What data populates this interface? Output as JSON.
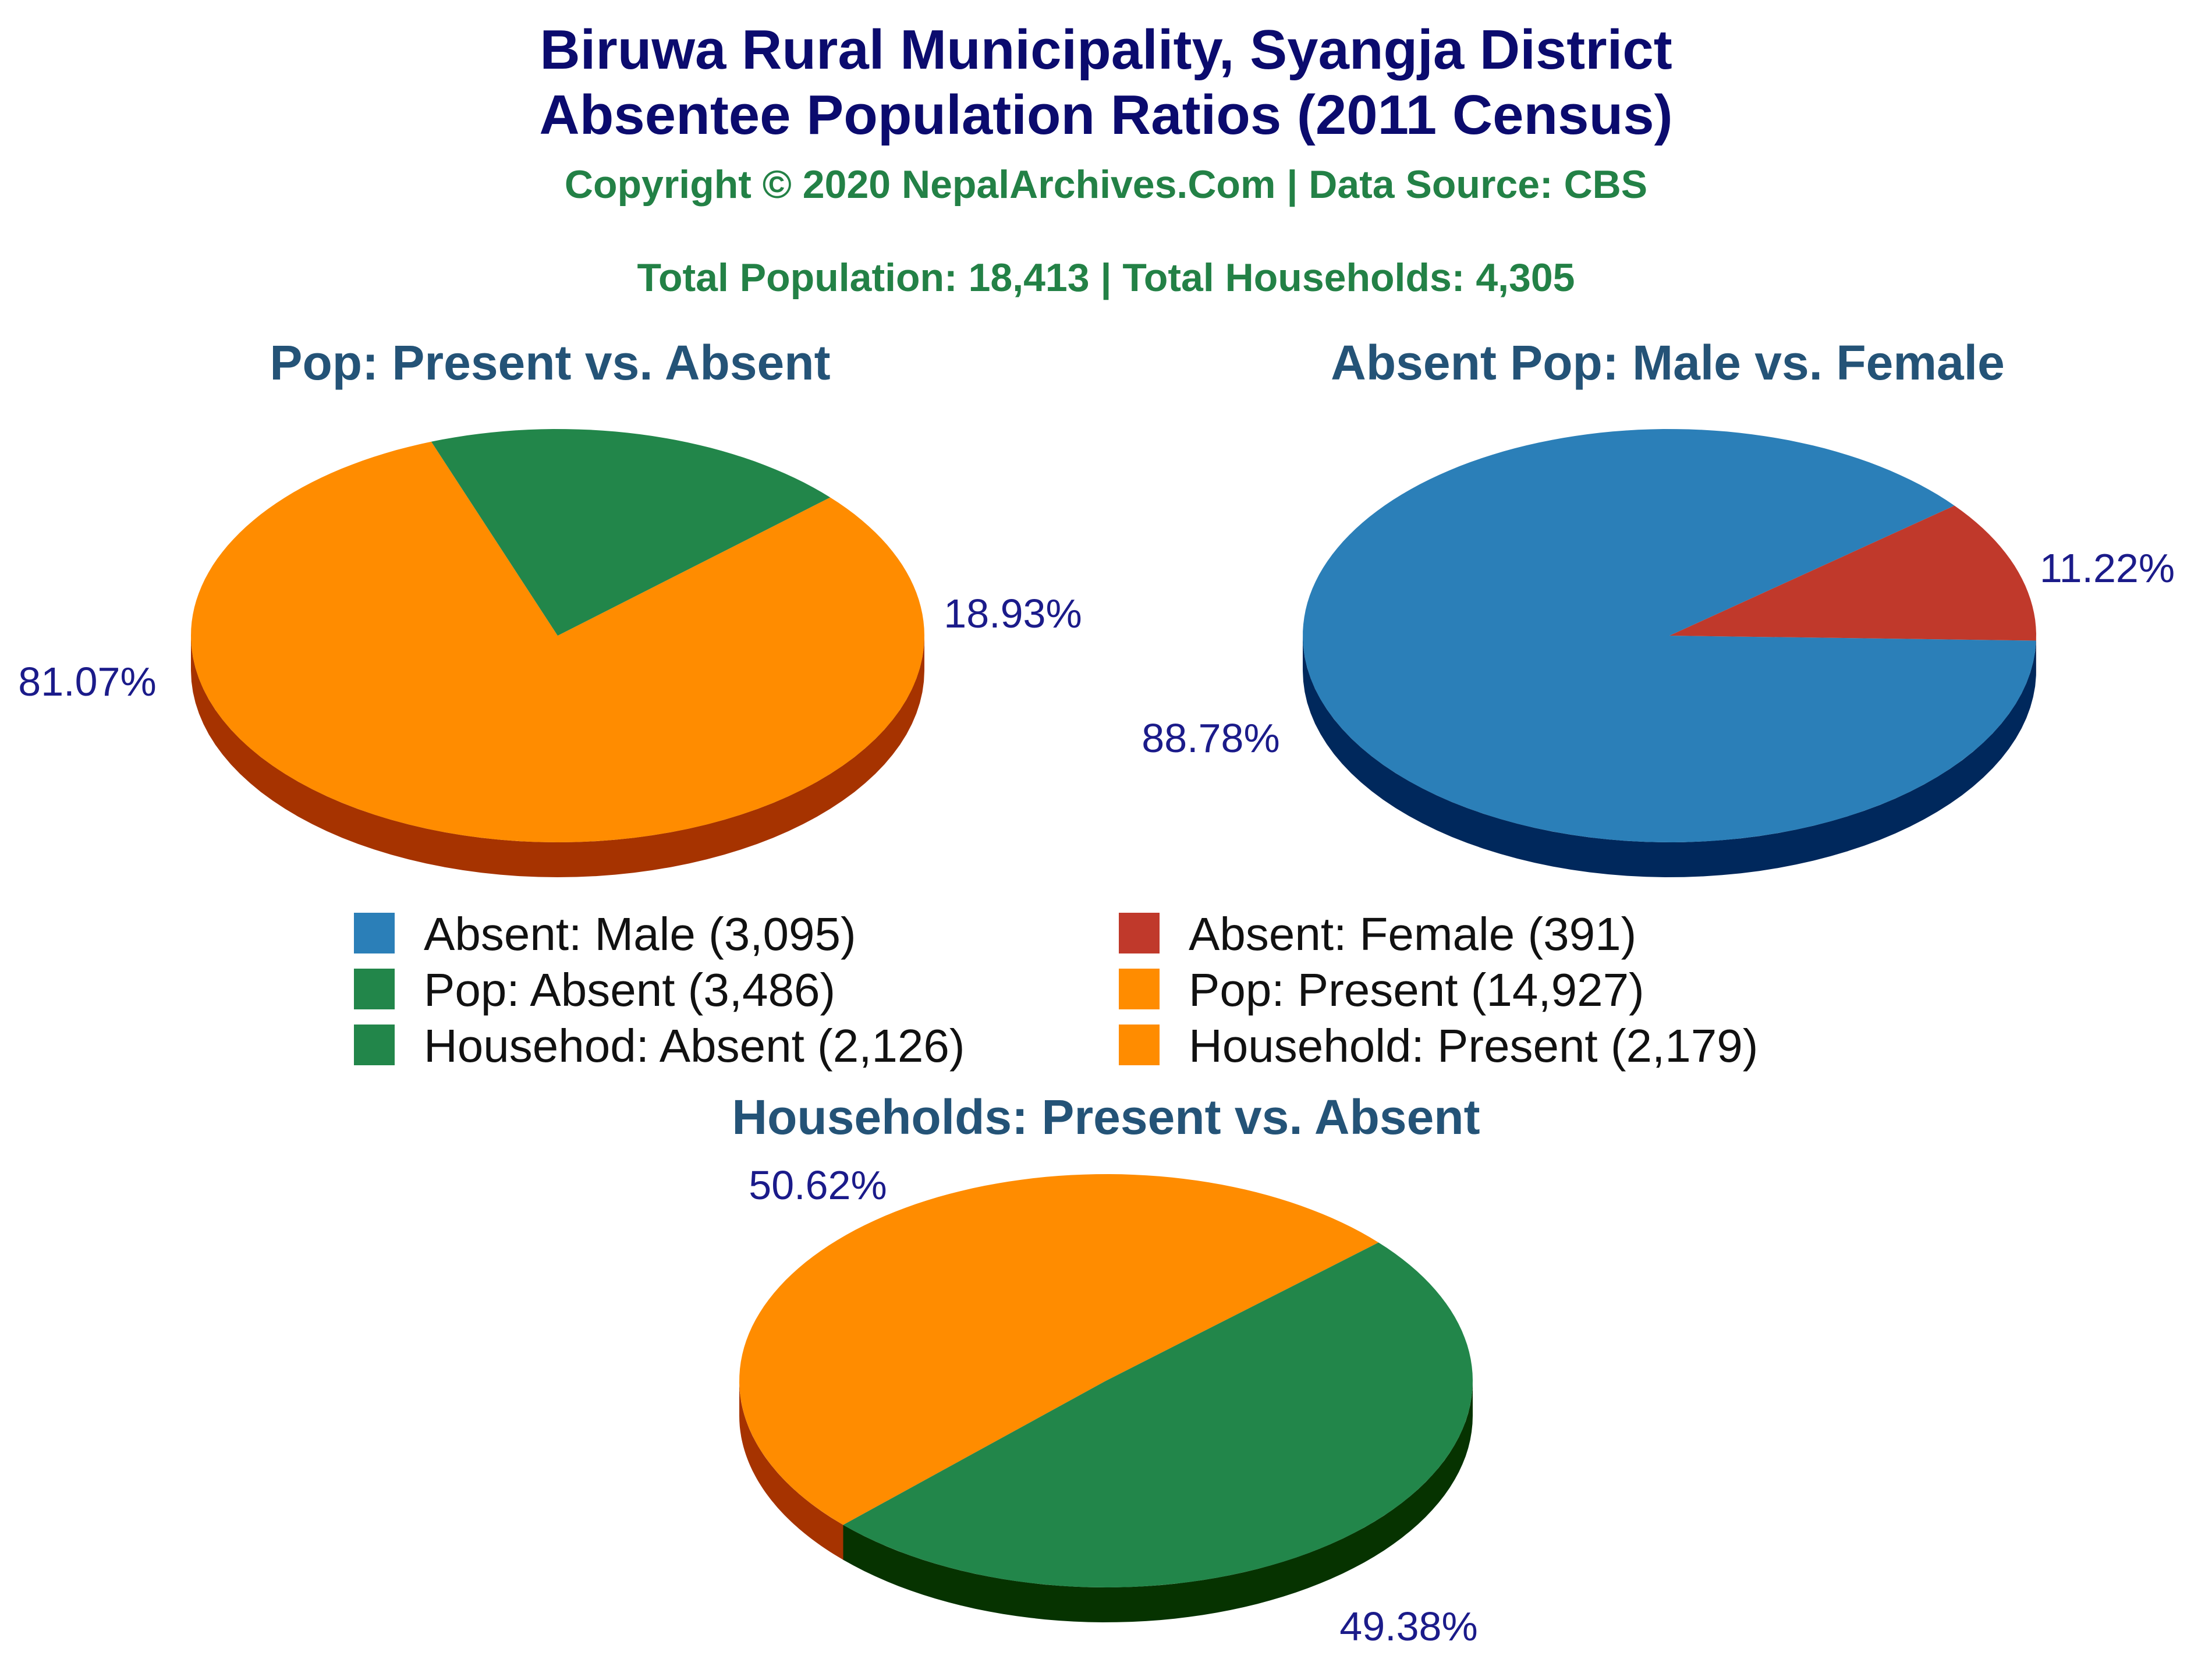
{
  "header": {
    "title_line1": "Biruwa Rural Municipality, Syangja District",
    "title_line2": "Absentee Population Ratios (2011 Census)",
    "copyright": "Copyright © 2020 NepalArchives.Com | Data Source: CBS",
    "totals": "Total Population: 18,413 | Total Households: 4,305"
  },
  "legend": [
    {
      "label": "Absent: Male (3,095)",
      "color": "#2b7fb8"
    },
    {
      "label": "Absent: Female (391)",
      "color": "#c0392b"
    },
    {
      "label": "Pop: Absent (3,486)",
      "color": "#22864a"
    },
    {
      "label": "Pop: Present (14,927)",
      "color": "#ff8c00"
    },
    {
      "label": "Househod: Absent (2,126)",
      "color": "#22864a"
    },
    {
      "label": "Household: Present (2,179)",
      "color": "#ff8c00"
    }
  ],
  "chart_data": [
    {
      "type": "pie",
      "title": "Pop: Present vs. Absent",
      "slices": [
        {
          "name": "Pop: Present",
          "value": 14927,
          "label": "81.07%",
          "color": "#ff8c00",
          "side_color": "#a63300"
        },
        {
          "name": "Pop: Absent",
          "value": 3486,
          "label": "18.93%",
          "color": "#22864a",
          "side_color": "#063300"
        }
      ]
    },
    {
      "type": "pie",
      "title": "Absent Pop: Male vs. Female",
      "slices": [
        {
          "name": "Absent: Male",
          "value": 3095,
          "label": "88.78%",
          "color": "#2b7fb8",
          "side_color": "#00285c"
        },
        {
          "name": "Absent: Female",
          "value": 391,
          "label": "11.22%",
          "color": "#c0392b",
          "side_color": "#6b0f08"
        }
      ]
    },
    {
      "type": "pie",
      "title": "Households: Present vs. Absent",
      "slices": [
        {
          "name": "Household: Present",
          "value": 2179,
          "label": "50.62%",
          "color": "#ff8c00",
          "side_color": "#a63300"
        },
        {
          "name": "Househod: Absent",
          "value": 2126,
          "label": "49.38%",
          "color": "#22864a",
          "side_color": "#063300"
        }
      ]
    }
  ]
}
